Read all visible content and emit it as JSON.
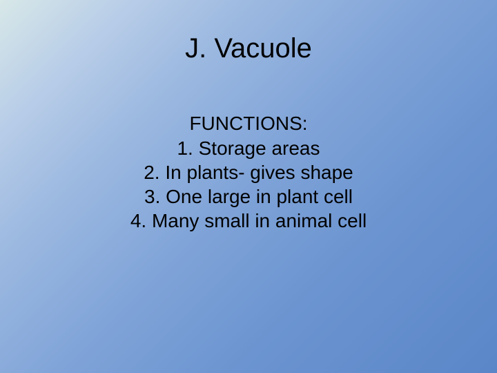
{
  "slide": {
    "title": "J. Vacuole",
    "subtitle": "FUNCTIONS:",
    "items": [
      "Storage areas",
      "In plants- gives shape",
      "One large in plant cell",
      "Many small in animal cell"
    ],
    "styling": {
      "background_gradient_start": "#d8e8e8",
      "background_gradient_end": "#5a86c8",
      "text_color": "#000000",
      "title_fontsize": 40,
      "body_fontsize": 28,
      "font_family": "Arial"
    }
  }
}
